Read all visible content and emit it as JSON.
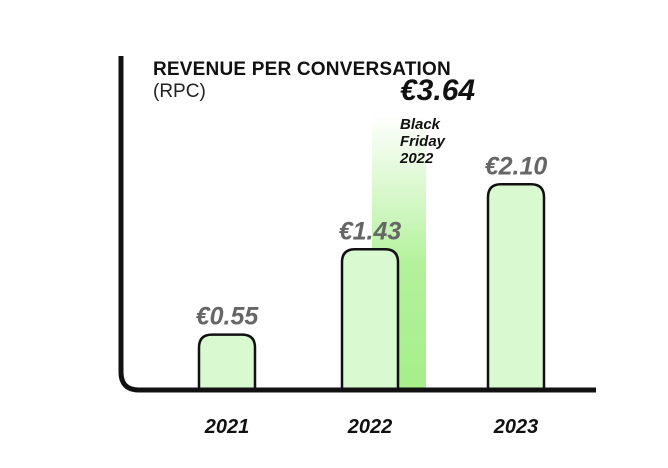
{
  "chart_data": {
    "type": "bar",
    "title": "REVENUE PER CONVERSATION",
    "subtitle": "(RPC)",
    "categories": [
      "2021",
      "2022",
      "2023"
    ],
    "values": [
      0.55,
      1.43,
      2.1
    ],
    "value_labels": [
      "€0.55",
      "€1.43",
      "€2.10"
    ],
    "ylim": [
      0,
      4
    ],
    "grid": false,
    "annotation": {
      "category": "2022",
      "value": 3.64,
      "value_label": "€3.64",
      "note_lines": [
        "Black",
        "Friday",
        "2022"
      ]
    },
    "colors": {
      "bar_fill": "#d9f9d0",
      "bar_stroke": "#111111",
      "highlight": "#a6ef8a",
      "axis": "#111111",
      "value_label": "#666666",
      "tick_label": "#111111"
    }
  }
}
